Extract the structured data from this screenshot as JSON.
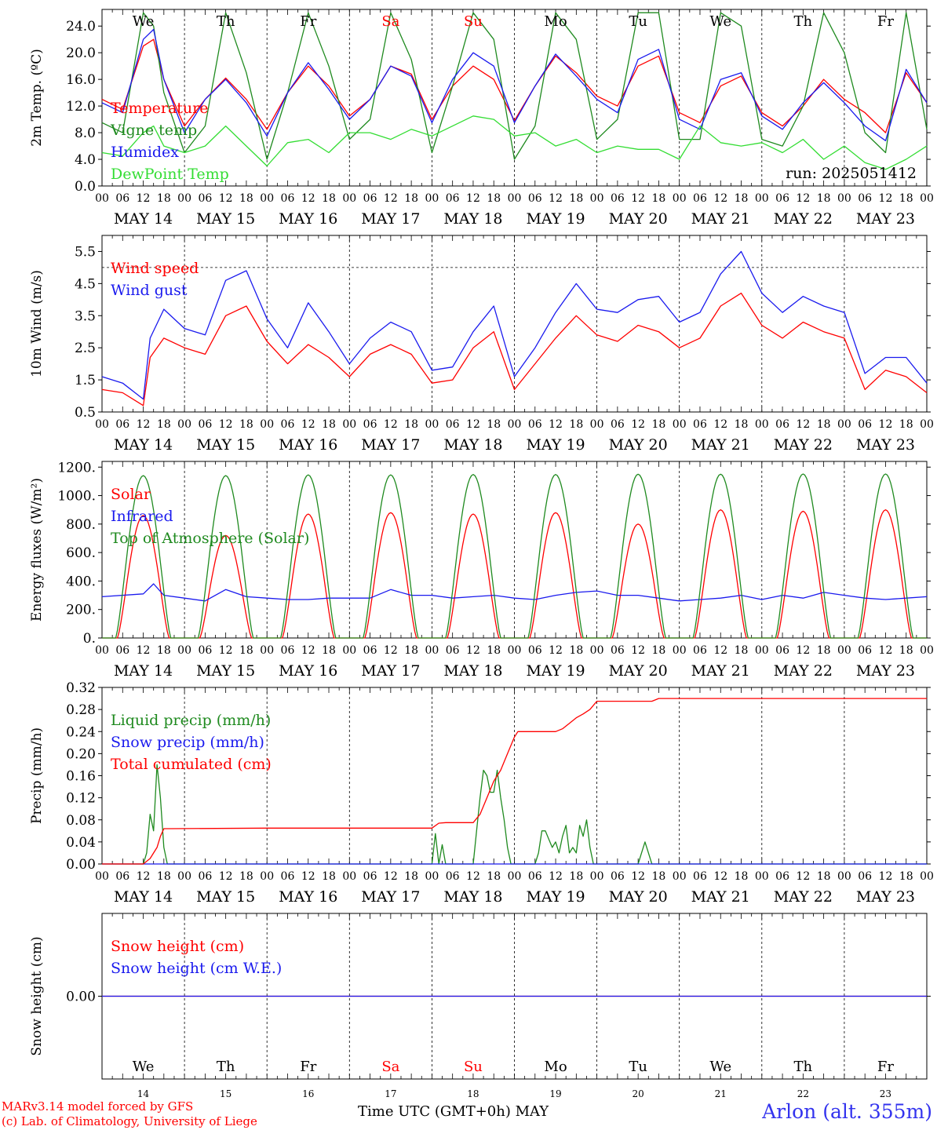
{
  "colors": {
    "red": "#ff0000",
    "green": "#1f8a1f",
    "lightgreen": "#33dd33",
    "blue": "#1a1aee",
    "weekend": "#ff0000",
    "station": "#3333ee"
  },
  "x_axis": {
    "hour_ticks": [
      "00",
      "06",
      "12",
      "18"
    ],
    "final_tick": "00",
    "dates": [
      "MAY 14",
      "MAY 15",
      "MAY 16",
      "MAY 17",
      "MAY 18",
      "MAY 19",
      "MAY 20",
      "MAY 21",
      "MAY 22",
      "MAY 23"
    ],
    "weekdays": [
      "We",
      "Th",
      "Fr",
      "Sa",
      "Su",
      "Mo",
      "Tu",
      "We",
      "Th",
      "Fr"
    ],
    "weekend_days": [
      "Sa",
      "Su"
    ],
    "day_numbers": [
      "14",
      "15",
      "16",
      "17",
      "18",
      "19",
      "20",
      "21",
      "22",
      "23"
    ],
    "time_label": "Time UTC (GMT+0h)",
    "month_label": "MAY"
  },
  "run_label": "run: 2025051412",
  "footer": {
    "credit_line1": "MARv3.14 model forced by GFS",
    "credit_line2": "(c) Lab. of Climatology, University of Liege",
    "station": "Arlon (alt. 355m)"
  },
  "chart_data": [
    {
      "id": "temperature",
      "type": "line",
      "ylabel": "2m Temp. (ºC)",
      "ylim": [
        0,
        26.5
      ],
      "yticks": [
        "0.0",
        "4.0",
        "8.0",
        "12.0",
        "16.0",
        "20.0",
        "24.0"
      ],
      "ytick_values": [
        0,
        4,
        8,
        12,
        16,
        20,
        24
      ],
      "x_unit": "hours since 2025-05-14 00 UTC",
      "series": [
        {
          "name": "Temperature",
          "color": "red",
          "x": [
            0,
            6,
            12,
            15,
            18,
            24,
            30,
            36,
            42,
            48,
            54,
            60,
            66,
            72,
            78,
            84,
            90,
            96,
            102,
            108,
            114,
            120,
            126,
            132,
            138,
            144,
            150,
            156,
            162,
            168,
            174,
            180,
            186,
            192,
            198,
            204,
            210,
            216,
            222,
            228,
            234,
            240
          ],
          "y": [
            13,
            11.5,
            21,
            22,
            16,
            9,
            13,
            16.2,
            13,
            8.5,
            14,
            18,
            15,
            10.5,
            13,
            18,
            16.8,
            10,
            15,
            18,
            16,
            9.8,
            15,
            19.5,
            17,
            13.5,
            12,
            18,
            19.5,
            11,
            9.5,
            15,
            16.5,
            11,
            9,
            12,
            16,
            13,
            11,
            8,
            17,
            12.5
          ]
        },
        {
          "name": "Vigne temp",
          "color": "green",
          "x": [
            0,
            6,
            12,
            15,
            18,
            24,
            30,
            36,
            42,
            48,
            54,
            60,
            66,
            72,
            78,
            84,
            90,
            96,
            102,
            108,
            114,
            120,
            126,
            132,
            138,
            144,
            150,
            156,
            162,
            168,
            174,
            180,
            186,
            192,
            198,
            204,
            210,
            216,
            222,
            228,
            234,
            240
          ],
          "y": [
            9.5,
            8,
            26,
            24,
            14,
            5,
            9,
            26,
            17,
            4,
            14,
            26,
            18,
            7,
            10,
            26,
            19,
            5,
            15,
            26,
            22,
            4,
            9,
            26,
            22,
            7,
            10,
            26,
            26,
            7,
            7,
            26,
            24,
            7,
            6,
            12,
            26,
            20,
            8,
            5,
            26,
            8.5
          ]
        },
        {
          "name": "Humidex",
          "color": "blue",
          "x": [
            0,
            6,
            12,
            15,
            18,
            24,
            30,
            36,
            42,
            48,
            54,
            60,
            66,
            72,
            78,
            84,
            90,
            96,
            102,
            108,
            114,
            120,
            126,
            132,
            138,
            144,
            150,
            156,
            162,
            168,
            174,
            180,
            186,
            192,
            198,
            204,
            210,
            216,
            222,
            228,
            234,
            240
          ],
          "y": [
            12.5,
            11,
            22,
            23.5,
            16,
            8,
            13,
            16,
            12.5,
            7.5,
            14,
            18.5,
            14.5,
            10,
            13,
            18,
            16.5,
            9.5,
            16,
            20,
            18,
            9.5,
            15,
            19.8,
            16.5,
            13,
            11,
            19,
            20.5,
            10,
            8.5,
            16,
            17,
            10.5,
            8.5,
            12.5,
            15.5,
            12.5,
            9,
            6.8,
            17.5,
            12.5
          ]
        },
        {
          "name": "DewPoint Temp",
          "color": "lightgreen",
          "x": [
            0,
            6,
            12,
            15,
            18,
            24,
            30,
            36,
            42,
            48,
            54,
            60,
            66,
            72,
            78,
            84,
            90,
            96,
            102,
            108,
            114,
            120,
            126,
            132,
            138,
            144,
            150,
            156,
            162,
            168,
            174,
            180,
            186,
            192,
            198,
            204,
            210,
            216,
            222,
            228,
            234,
            240
          ],
          "y": [
            5,
            4.5,
            8,
            9,
            6,
            5,
            6,
            9,
            6,
            3,
            6.5,
            7,
            5,
            8,
            8,
            7,
            8.5,
            7.5,
            9,
            10.5,
            10,
            7.5,
            8,
            6,
            7,
            5,
            6,
            5.5,
            5.5,
            4,
            9,
            6.5,
            6,
            6.5,
            5,
            7,
            4,
            6,
            3.5,
            2.5,
            4,
            6
          ]
        }
      ],
      "reference_line": null,
      "legend_placement": "top-left"
    },
    {
      "id": "wind",
      "type": "line",
      "ylabel": "10m Wind (m/s)",
      "ylim": [
        0.5,
        6
      ],
      "yticks": [
        "0.5",
        "1.5",
        "2.5",
        "3.5",
        "4.5",
        "5.5"
      ],
      "ytick_values": [
        0.5,
        1.5,
        2.5,
        3.5,
        4.5,
        5.5
      ],
      "reference_line": 5,
      "x_unit": "hours since 2025-05-14 00 UTC",
      "series": [
        {
          "name": "Wind speed",
          "color": "red",
          "x": [
            0,
            6,
            12,
            14,
            18,
            24,
            30,
            36,
            42,
            48,
            54,
            60,
            66,
            72,
            78,
            84,
            90,
            96,
            102,
            108,
            114,
            120,
            126,
            132,
            138,
            144,
            150,
            156,
            162,
            168,
            174,
            180,
            186,
            192,
            198,
            204,
            210,
            216,
            222,
            228,
            234,
            240
          ],
          "y": [
            1.2,
            1.1,
            0.7,
            2.2,
            2.8,
            2.5,
            2.3,
            3.5,
            3.8,
            2.7,
            2.0,
            2.6,
            2.2,
            1.6,
            2.3,
            2.6,
            2.3,
            1.4,
            1.5,
            2.5,
            3.0,
            1.2,
            2.0,
            2.8,
            3.5,
            2.9,
            2.7,
            3.2,
            3.0,
            2.5,
            2.8,
            3.8,
            4.2,
            3.2,
            2.8,
            3.3,
            3.0,
            2.8,
            1.2,
            1.8,
            1.6,
            1.1
          ]
        },
        {
          "name": "Wind gust",
          "color": "blue",
          "x": [
            0,
            6,
            12,
            14,
            18,
            24,
            30,
            36,
            42,
            48,
            54,
            60,
            66,
            72,
            78,
            84,
            90,
            96,
            102,
            108,
            114,
            120,
            126,
            132,
            138,
            144,
            150,
            156,
            162,
            168,
            174,
            180,
            186,
            192,
            198,
            204,
            210,
            216,
            222,
            228,
            234,
            240
          ],
          "y": [
            1.6,
            1.4,
            0.9,
            2.8,
            3.7,
            3.1,
            2.9,
            4.6,
            4.9,
            3.4,
            2.5,
            3.9,
            3.0,
            2.0,
            2.8,
            3.3,
            3.0,
            1.8,
            1.9,
            3.0,
            3.8,
            1.6,
            2.5,
            3.6,
            4.5,
            3.7,
            3.6,
            4.0,
            4.1,
            3.3,
            3.6,
            4.8,
            5.5,
            4.2,
            3.6,
            4.1,
            3.8,
            3.6,
            1.7,
            2.2,
            2.2,
            1.4
          ]
        }
      ],
      "legend_placement": "top-left"
    },
    {
      "id": "energy",
      "type": "line",
      "ylabel": "Energy fluxes (W/m²)",
      "ylim": [
        0,
        1240
      ],
      "yticks": [
        "0.",
        "200.",
        "400.",
        "600.",
        "800.",
        "1000.",
        "1200."
      ],
      "ytick_values": [
        0,
        200,
        400,
        600,
        800,
        1000,
        1200
      ],
      "x_unit": "hours since 2025-05-14 00 UTC",
      "series": [
        {
          "name": "Solar",
          "color": "red",
          "diurnal": true,
          "peak": [
            860,
            720,
            870,
            880,
            870,
            880,
            800,
            900,
            890,
            900
          ],
          "sunrise_hour": 4.5,
          "sunset_hour": 19.5
        },
        {
          "name": "Infrared",
          "color": "blue",
          "x": [
            0,
            12,
            15,
            18,
            24,
            30,
            36,
            42,
            48,
            54,
            60,
            66,
            72,
            78,
            84,
            90,
            96,
            102,
            108,
            114,
            120,
            126,
            132,
            138,
            144,
            150,
            156,
            162,
            168,
            174,
            180,
            186,
            192,
            198,
            204,
            210,
            216,
            222,
            228,
            234,
            240
          ],
          "y": [
            290,
            310,
            380,
            300,
            280,
            260,
            340,
            290,
            280,
            270,
            270,
            280,
            280,
            280,
            340,
            300,
            300,
            280,
            290,
            300,
            280,
            270,
            300,
            320,
            330,
            300,
            300,
            280,
            260,
            270,
            280,
            300,
            270,
            300,
            280,
            320,
            300,
            280,
            270,
            280,
            290
          ]
        },
        {
          "name": "Top of Atmosphere (Solar)",
          "color": "green",
          "diurnal": true,
          "peak": [
            1140,
            1140,
            1145,
            1145,
            1148,
            1148,
            1150,
            1150,
            1152,
            1152
          ],
          "sunrise_hour": 4,
          "sunset_hour": 20
        }
      ],
      "reference_line": null,
      "legend_placement": "top-left"
    },
    {
      "id": "precip",
      "type": "line",
      "ylabel": "Precip (mm/h)",
      "ylim": [
        0,
        0.32
      ],
      "yticks": [
        "0.00",
        "0.04",
        "0.08",
        "0.12",
        "0.16",
        "0.20",
        "0.24",
        "0.28",
        "0.32"
      ],
      "ytick_values": [
        0,
        0.04,
        0.08,
        0.12,
        0.16,
        0.2,
        0.24,
        0.28,
        0.32
      ],
      "x_unit": "hours since 2025-05-14 00 UTC",
      "series": [
        {
          "name": "Liquid precip (mm/h)",
          "color": "green",
          "x": [
            0,
            12,
            13,
            14,
            15,
            16,
            17,
            18,
            19,
            96,
            97,
            98,
            99,
            100,
            108,
            109,
            110,
            111,
            112,
            113,
            114,
            115,
            116,
            117,
            118,
            119,
            120,
            121,
            126,
            127,
            128,
            129,
            130,
            131,
            132,
            133,
            134,
            135,
            136,
            137,
            138,
            139,
            140,
            141,
            142,
            143,
            144,
            145,
            156,
            157,
            158,
            159,
            160,
            161,
            240
          ],
          "y": [
            0,
            0,
            0.02,
            0.09,
            0.06,
            0.18,
            0.12,
            0.03,
            0,
            0,
            0.055,
            0,
            0.035,
            0,
            0,
            0.06,
            0.12,
            0.17,
            0.16,
            0.13,
            0.13,
            0.17,
            0.12,
            0.08,
            0.03,
            0,
            0,
            0,
            0,
            0.02,
            0.06,
            0.06,
            0.045,
            0.03,
            0.04,
            0.02,
            0.05,
            0.07,
            0.02,
            0.03,
            0.02,
            0.07,
            0.05,
            0.08,
            0.03,
            0,
            0,
            0,
            0,
            0.02,
            0.04,
            0.02,
            0,
            0,
            0
          ]
        },
        {
          "name": "Snow precip (mm/h)",
          "color": "blue",
          "x": [
            0,
            240
          ],
          "y": [
            0,
            0
          ]
        },
        {
          "name": "Total cumulated (cm)",
          "color": "red",
          "x": [
            0,
            12,
            14,
            16,
            17,
            18,
            19,
            20,
            48,
            96,
            98,
            100,
            108,
            110,
            112,
            114,
            116,
            118,
            120,
            121,
            132,
            134,
            136,
            138,
            140,
            142,
            144,
            160,
            162,
            240
          ],
          "y": [
            0,
            0,
            0.01,
            0.03,
            0.05,
            0.064,
            0.064,
            0.064,
            0.065,
            0.065,
            0.074,
            0.075,
            0.075,
            0.09,
            0.12,
            0.15,
            0.17,
            0.2,
            0.23,
            0.24,
            0.24,
            0.245,
            0.255,
            0.265,
            0.272,
            0.28,
            0.295,
            0.295,
            0.3,
            0.3
          ]
        }
      ],
      "reference_line": null,
      "legend_placement": "top-left"
    },
    {
      "id": "snow",
      "type": "line",
      "ylabel": "Snow height (cm)",
      "ylim": [
        -1,
        1
      ],
      "yticks": [
        "0.00"
      ],
      "ytick_values": [
        0
      ],
      "x_unit": "hours since 2025-05-14 00 UTC",
      "series": [
        {
          "name": "Snow height (cm)",
          "color": "red",
          "x": [
            0,
            240
          ],
          "y": [
            0,
            0
          ]
        },
        {
          "name": "Snow height (cm W.E.)",
          "color": "blue",
          "x": [
            0,
            240
          ],
          "y": [
            0,
            0
          ]
        }
      ],
      "reference_line": null,
      "legend_placement": "top-left"
    }
  ]
}
